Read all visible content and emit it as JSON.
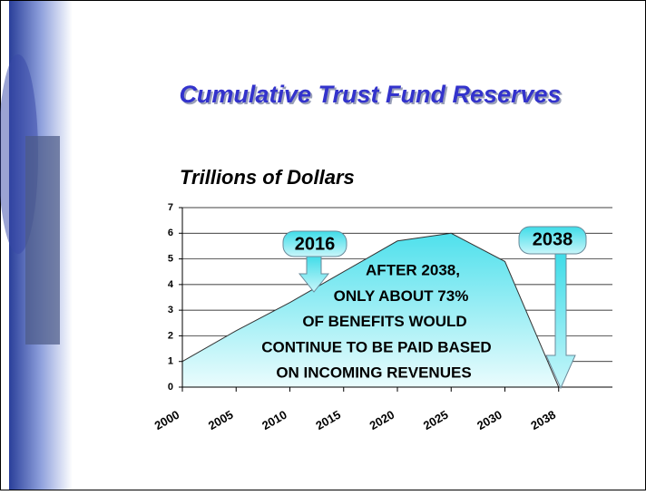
{
  "chart_data": {
    "type": "area",
    "title": "Cumulative Trust Fund Reserves",
    "y_label": "Trillions of Dollars",
    "categories": [
      "2000",
      "2005",
      "2010",
      "2015",
      "2020",
      "2025",
      "2030",
      "2038"
    ],
    "values": [
      1.0,
      2.2,
      3.3,
      4.5,
      5.7,
      6.0,
      4.9,
      0
    ],
    "color": "#66e6f0",
    "ylim": [
      0,
      7
    ],
    "yticks": [
      0,
      1,
      2,
      3,
      4,
      5,
      6,
      7
    ],
    "grid": true,
    "callouts": [
      "2016",
      "2038"
    ],
    "annotation": [
      "AFTER 2038,",
      "ONLY ABOUT 73%",
      "OF BENEFITS WOULD",
      "CONTINUE TO BE PAID BASED",
      "ON INCOMING REVENUES"
    ]
  }
}
